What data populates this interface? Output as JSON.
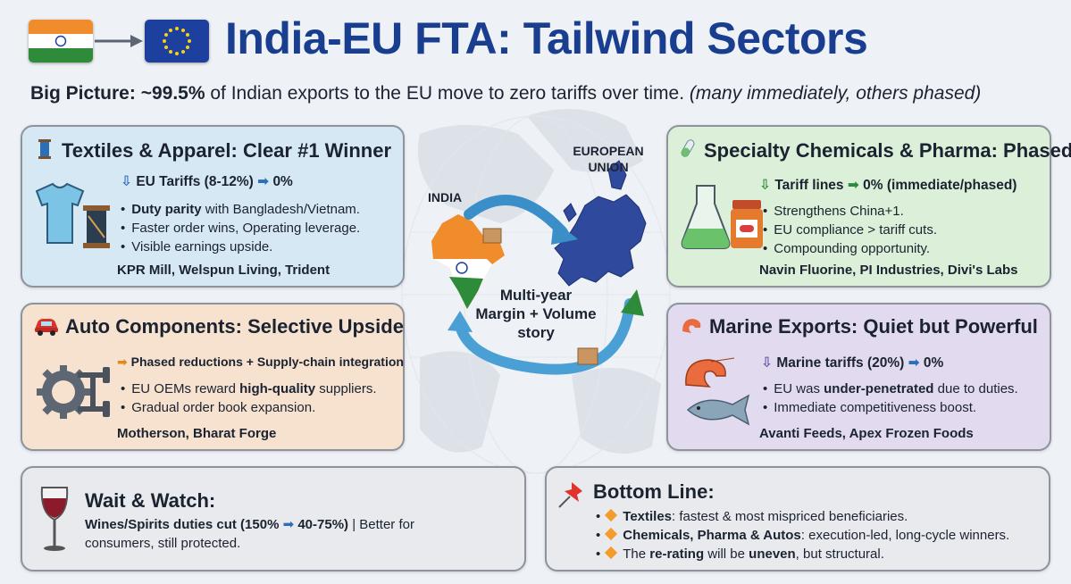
{
  "header": {
    "title": "India-EU FTA: Tailwind Sectors",
    "big_picture_label": "Big Picture:",
    "big_picture_pct": "~99.5%",
    "big_picture_text": " of Indian exports to the EU move to zero tariffs over time. ",
    "big_picture_note": "(many immediately, others phased)"
  },
  "map": {
    "india_label": "INDIA",
    "eu_label_1": "EUROPEAN",
    "eu_label_2": "UNION",
    "story_1": "Multi-year",
    "story_2": "Margin + Volume",
    "story_3": "story"
  },
  "textiles": {
    "title": "Textiles & Apparel: Clear #1 Winner",
    "tariff": "EU Tariffs (8-12%)",
    "tariff_to": "0%",
    "b1_bold": "Duty parity",
    "b1_rest": " with Bangladesh/Vietnam.",
    "b2": "Faster order wins, Operating leverage.",
    "b3": "Visible earnings upside.",
    "companies": "KPR Mill, Welspun Living, Trident"
  },
  "auto": {
    "title": "Auto Components: Selective Upside",
    "sub": "Phased reductions + Supply-chain integration",
    "b1_pre": "EU OEMs reward ",
    "b1_bold": "high-quality",
    "b1_post": " suppliers.",
    "b2": "Gradual order book expansion.",
    "companies": "Motherson, Bharat Forge"
  },
  "chem": {
    "title": "Specialty Chemicals & Pharma: Phased",
    "sub": "Tariff lines",
    "sub_to": "0% (immediate/phased)",
    "b1": "Strengthens China+1.",
    "b2": "EU compliance > tariff cuts.",
    "b3": "Compounding opportunity.",
    "companies": "Navin Fluorine, PI Industries, Divi's Labs"
  },
  "marine": {
    "title": "Marine Exports: Quiet but Powerful",
    "sub": "Marine tariffs (20%)",
    "sub_to": "0%",
    "b1_pre": "EU was ",
    "b1_bold": "under-penetrated",
    "b1_post": " due to duties.",
    "b2": "Immediate competitiveness boost.",
    "companies": "Avanti Feeds, Apex Frozen Foods"
  },
  "wait": {
    "title": "Wait & Watch:",
    "line1_bold": "Wines/Spirits duties cut (150%",
    "line1_bold2": "40-75%)",
    "line1_rest": " | Better for",
    "line2": "consumers, still protected."
  },
  "bottom": {
    "title": "Bottom Line:",
    "i1_bold": "Textiles",
    "i1_rest": ": fastest & most mispriced beneficiaries.",
    "i2_bold": "Chemicals, Pharma & Autos",
    "i2_rest": ": execution-led, long-cycle winners.",
    "i3_pre": "The ",
    "i3_bold": "re-rating",
    "i3_mid": " will be ",
    "i3_bold2": "uneven",
    "i3_post": ", but structural."
  },
  "colors": {
    "title": "#1a3e8f",
    "textiles_bg": "#d7e8f5",
    "auto_bg": "#f6e2cf",
    "chem_bg": "#dcefd9",
    "marine_bg": "#e2dbef",
    "bullet_diamond": "#f39c2a"
  },
  "icons": [
    "india-flag-icon",
    "eu-flag-icon",
    "arrow-right-icon",
    "thread-spool-icon",
    "tshirt-icon",
    "car-icon",
    "gear-icon",
    "flask-icon",
    "medicine-bottle-icon",
    "shrimp-icon",
    "fish-icon",
    "wine-glass-icon",
    "pushpin-icon",
    "down-arrow-icon"
  ]
}
